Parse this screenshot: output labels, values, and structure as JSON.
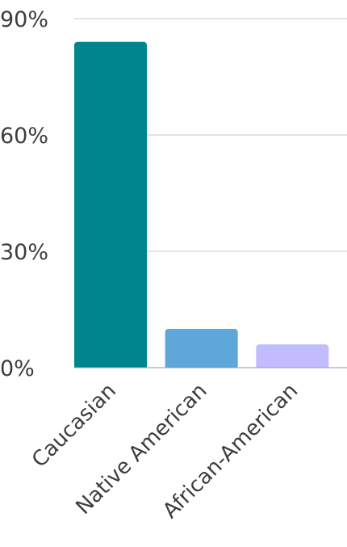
{
  "chart_data": {
    "type": "bar",
    "title": "",
    "xlabel": "",
    "ylabel": "",
    "categories": [
      "Caucasian",
      "Native American",
      "African-American"
    ],
    "values": [
      84,
      10,
      6
    ],
    "colors": [
      "#00858e",
      "#5ea7db",
      "#c2bcff"
    ],
    "ylim": [
      0,
      90
    ],
    "yticks": [
      {
        "value": 0,
        "label": "0%"
      },
      {
        "value": 30,
        "label": "30%"
      },
      {
        "value": 60,
        "label": "60%"
      },
      {
        "value": 90,
        "label": "90%"
      }
    ],
    "grid": true,
    "legend": "none"
  }
}
